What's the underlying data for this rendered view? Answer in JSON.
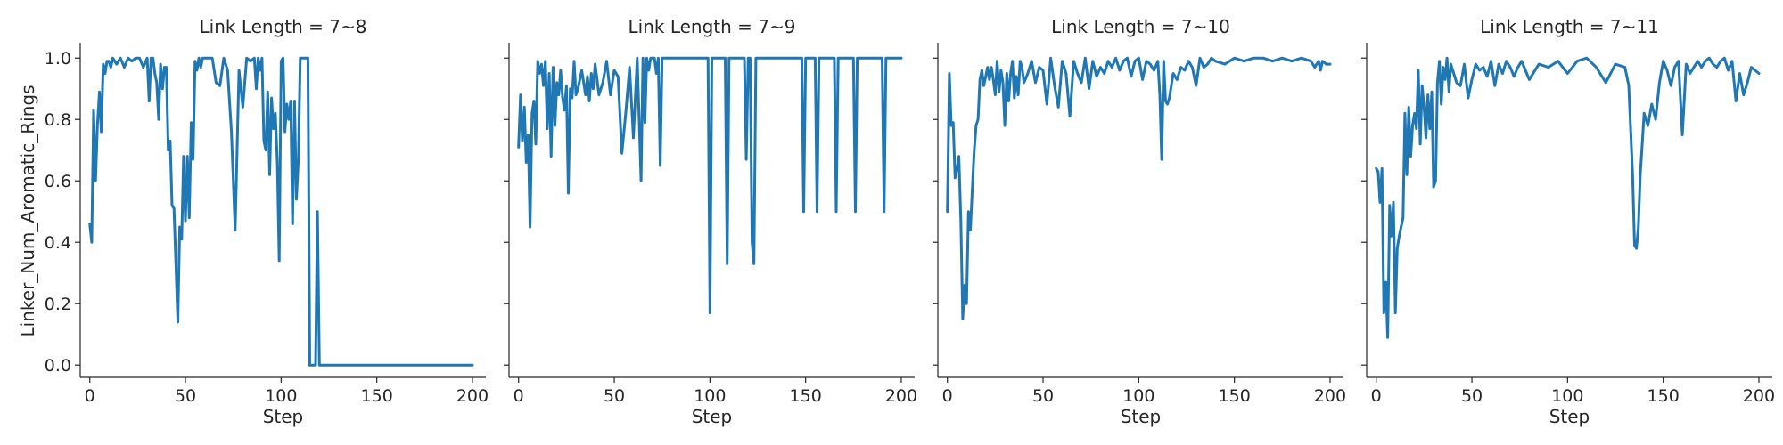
{
  "chart_data": {
    "type": "line",
    "ylabel": "Linker_Num_Aromatic_Rings",
    "xlabel": "Step",
    "xlim": [
      -5,
      207
    ],
    "ylim": [
      -0.04,
      1.05
    ],
    "xticks": [
      0,
      50,
      100,
      150,
      200
    ],
    "yticks": [
      0.0,
      0.2,
      0.4,
      0.6,
      0.8,
      1.0
    ],
    "ytick_labels": [
      "0.0",
      "0.2",
      "0.4",
      "0.6",
      "0.8",
      "1.0"
    ],
    "grid": false,
    "line_color": "#1f77b4",
    "panels": [
      {
        "title": "Link Length = 7~8",
        "x": [
          0,
          1,
          2,
          3,
          4,
          5,
          6,
          7,
          8,
          9,
          10,
          11,
          12,
          14,
          16,
          18,
          20,
          22,
          24,
          26,
          28,
          30,
          31,
          32,
          33,
          34,
          35,
          36,
          37,
          38,
          39,
          40,
          41,
          42,
          43,
          44,
          45,
          46,
          47,
          48,
          49,
          50,
          51,
          52,
          53,
          54,
          55,
          56,
          57,
          58,
          59,
          60,
          62,
          64,
          66,
          68,
          70,
          72,
          74,
          76,
          78,
          80,
          82,
          84,
          86,
          87,
          88,
          89,
          90,
          91,
          92,
          93,
          94,
          95,
          96,
          97,
          98,
          99,
          100,
          101,
          102,
          103,
          104,
          105,
          106,
          107,
          108,
          109,
          110,
          111,
          112,
          113,
          114,
          115,
          116,
          117,
          118,
          119,
          120,
          121,
          122,
          123,
          124,
          125,
          126,
          127,
          128,
          129,
          130,
          131,
          132,
          133,
          134,
          135,
          136,
          137,
          138,
          139,
          140,
          145,
          150,
          160,
          170,
          180,
          190,
          200
        ],
        "y": [
          0.46,
          0.4,
          0.83,
          0.6,
          0.78,
          0.89,
          0.76,
          0.98,
          0.95,
          0.99,
          0.99,
          0.97,
          1.0,
          0.98,
          1.0,
          0.97,
          1.0,
          0.99,
          1.0,
          1.0,
          0.97,
          1.0,
          0.86,
          1.0,
          1.0,
          0.95,
          0.92,
          0.8,
          0.98,
          0.9,
          0.97,
          0.97,
          0.7,
          0.73,
          0.52,
          0.51,
          0.33,
          0.14,
          0.45,
          0.41,
          0.68,
          0.47,
          0.68,
          0.48,
          0.79,
          0.67,
          0.99,
          0.96,
          1.0,
          0.97,
          1.0,
          1.0,
          1.0,
          1.0,
          0.92,
          0.91,
          1.0,
          0.96,
          0.76,
          0.44,
          0.96,
          0.84,
          1.0,
          0.99,
          1.0,
          0.9,
          1.0,
          0.96,
          1.0,
          0.73,
          0.7,
          0.89,
          0.62,
          0.87,
          0.77,
          0.82,
          0.66,
          0.34,
          0.99,
          1.0,
          0.76,
          0.85,
          0.8,
          0.86,
          0.46,
          0.86,
          0.54,
          0.67,
          1.0,
          1.0,
          1.0,
          1.0,
          1.0,
          0.0,
          0.0,
          0.0,
          0.0,
          0.5,
          0.0,
          0.0,
          0.0,
          0.0,
          0.0,
          0.0,
          0.0,
          0.0,
          0.0,
          0.0,
          0.0,
          0.0,
          0.0,
          0.0,
          0.0,
          0.0,
          0.0,
          0.0,
          0.0,
          0.0,
          0.0,
          0.0,
          0.0,
          0.0,
          0.0,
          0.0,
          0.0,
          0.0
        ]
      },
      {
        "title": "Link Length = 7~9",
        "x": [
          0,
          1,
          2,
          3,
          4,
          5,
          6,
          7,
          8,
          9,
          10,
          11,
          12,
          13,
          14,
          15,
          16,
          17,
          18,
          19,
          20,
          21,
          22,
          23,
          24,
          25,
          26,
          27,
          28,
          29,
          30,
          31,
          32,
          33,
          34,
          35,
          36,
          37,
          38,
          39,
          40,
          42,
          44,
          46,
          48,
          50,
          52,
          54,
          56,
          58,
          60,
          62,
          64,
          65,
          66,
          67,
          68,
          69,
          70,
          71,
          72,
          73,
          74,
          75,
          76,
          77,
          78,
          79,
          80,
          85,
          90,
          95,
          98,
          99,
          100,
          101,
          102,
          105,
          108,
          109,
          110,
          115,
          118,
          119,
          120,
          121,
          122,
          123,
          124,
          125,
          130,
          140,
          148,
          149,
          150,
          151,
          155,
          156,
          157,
          158,
          160,
          165,
          166,
          167,
          170,
          172,
          175,
          176,
          177,
          180,
          185,
          190,
          191,
          192,
          195,
          200
        ],
        "y": [
          0.71,
          0.88,
          0.73,
          0.84,
          0.66,
          0.75,
          0.45,
          0.82,
          0.86,
          0.72,
          0.99,
          0.95,
          0.98,
          0.91,
          0.99,
          0.77,
          0.95,
          0.68,
          0.97,
          0.78,
          0.92,
          0.88,
          0.96,
          0.87,
          0.83,
          0.91,
          0.56,
          0.9,
          0.87,
          0.99,
          0.88,
          0.9,
          0.93,
          0.96,
          0.92,
          0.88,
          0.94,
          0.86,
          0.95,
          0.9,
          0.98,
          0.88,
          0.92,
          0.99,
          0.88,
          0.96,
          0.94,
          0.69,
          0.82,
          0.97,
          0.74,
          1.0,
          0.6,
          1.0,
          0.79,
          1.0,
          0.96,
          1.0,
          1.0,
          1.0,
          0.95,
          1.0,
          0.65,
          1.0,
          1.0,
          1.0,
          1.0,
          1.0,
          1.0,
          1.0,
          1.0,
          1.0,
          1.0,
          1.0,
          0.17,
          1.0,
          1.0,
          1.0,
          1.0,
          0.33,
          1.0,
          1.0,
          1.0,
          0.67,
          1.0,
          1.0,
          0.4,
          0.33,
          1.0,
          1.0,
          1.0,
          1.0,
          1.0,
          0.5,
          1.0,
          1.0,
          1.0,
          0.5,
          1.0,
          1.0,
          1.0,
          1.0,
          0.5,
          1.0,
          1.0,
          1.0,
          1.0,
          0.5,
          1.0,
          1.0,
          1.0,
          1.0,
          0.5,
          1.0,
          1.0,
          1.0
        ]
      },
      {
        "title": "Link Length = 7~10",
        "x": [
          0,
          1,
          2,
          3,
          4,
          5,
          6,
          7,
          8,
          9,
          10,
          11,
          12,
          13,
          14,
          15,
          16,
          17,
          18,
          19,
          20,
          21,
          22,
          23,
          24,
          25,
          26,
          27,
          28,
          29,
          30,
          31,
          32,
          33,
          34,
          35,
          36,
          37,
          38,
          39,
          40,
          42,
          44,
          46,
          48,
          50,
          52,
          54,
          56,
          58,
          60,
          62,
          64,
          66,
          68,
          70,
          72,
          74,
          76,
          78,
          80,
          82,
          84,
          86,
          88,
          90,
          92,
          94,
          96,
          98,
          100,
          102,
          104,
          106,
          108,
          110,
          111,
          112,
          113,
          114,
          115,
          116,
          118,
          120,
          122,
          124,
          126,
          128,
          130,
          132,
          134,
          136,
          138,
          140,
          145,
          150,
          155,
          160,
          165,
          170,
          175,
          180,
          185,
          190,
          192,
          194,
          195,
          196,
          198,
          200
        ],
        "y": [
          0.5,
          0.95,
          0.78,
          0.79,
          0.61,
          0.64,
          0.68,
          0.47,
          0.15,
          0.26,
          0.2,
          0.5,
          0.44,
          0.57,
          0.7,
          0.78,
          0.8,
          0.93,
          0.96,
          0.91,
          0.94,
          0.97,
          0.93,
          0.97,
          0.93,
          0.88,
          0.99,
          0.89,
          0.96,
          0.92,
          0.78,
          0.95,
          0.86,
          0.95,
          0.99,
          0.87,
          0.94,
          0.88,
          0.99,
          0.97,
          0.92,
          0.95,
          0.99,
          0.92,
          0.97,
          0.96,
          0.85,
          1.0,
          0.91,
          0.84,
          0.99,
          0.95,
          0.81,
          0.99,
          0.95,
          0.92,
          1.0,
          0.9,
          0.99,
          0.94,
          0.97,
          0.95,
          0.99,
          0.97,
          1.0,
          0.96,
          0.99,
          1.0,
          0.94,
          0.99,
          1.0,
          0.93,
          0.99,
          0.98,
          0.96,
          0.99,
          0.88,
          0.67,
          0.99,
          0.86,
          0.85,
          0.87,
          0.95,
          0.93,
          0.97,
          0.96,
          0.99,
          0.97,
          0.91,
          1.0,
          0.97,
          0.98,
          1.0,
          0.99,
          0.98,
          1.0,
          0.99,
          1.0,
          1.0,
          0.99,
          1.0,
          0.99,
          1.0,
          0.99,
          0.97,
          0.99,
          0.96,
          0.99,
          0.98,
          0.98
        ]
      },
      {
        "title": "Link Length = 7~11",
        "x": [
          0,
          1,
          2,
          3,
          4,
          5,
          6,
          7,
          8,
          9,
          10,
          11,
          12,
          13,
          14,
          15,
          16,
          17,
          18,
          19,
          20,
          21,
          22,
          23,
          24,
          25,
          26,
          27,
          28,
          29,
          30,
          31,
          32,
          33,
          34,
          35,
          36,
          37,
          38,
          39,
          40,
          42,
          44,
          46,
          48,
          50,
          52,
          54,
          56,
          58,
          60,
          62,
          64,
          66,
          68,
          70,
          72,
          74,
          76,
          78,
          80,
          85,
          90,
          95,
          100,
          105,
          110,
          115,
          120,
          125,
          130,
          132,
          134,
          135,
          136,
          137,
          138,
          139,
          140,
          142,
          144,
          146,
          148,
          150,
          152,
          154,
          156,
          158,
          160,
          162,
          164,
          166,
          168,
          170,
          172,
          174,
          176,
          178,
          180,
          182,
          184,
          186,
          188,
          190,
          192,
          194,
          196,
          198,
          200
        ],
        "y": [
          0.64,
          0.63,
          0.53,
          0.64,
          0.17,
          0.27,
          0.09,
          0.52,
          0.42,
          0.53,
          0.17,
          0.38,
          0.42,
          0.45,
          0.48,
          0.82,
          0.62,
          0.84,
          0.68,
          0.78,
          0.82,
          0.77,
          0.96,
          0.72,
          0.91,
          0.84,
          0.74,
          0.88,
          0.77,
          0.89,
          0.58,
          0.6,
          0.92,
          0.99,
          0.85,
          0.97,
          0.93,
          1.0,
          0.89,
          0.98,
          0.96,
          0.92,
          0.91,
          0.98,
          0.87,
          0.93,
          0.98,
          0.96,
          0.97,
          0.94,
          0.99,
          0.91,
          0.98,
          0.95,
          0.99,
          0.97,
          0.94,
          0.97,
          0.99,
          0.96,
          0.93,
          0.98,
          0.97,
          0.99,
          0.95,
          0.99,
          1.0,
          0.97,
          0.92,
          0.98,
          0.97,
          0.91,
          0.62,
          0.39,
          0.38,
          0.45,
          0.62,
          0.72,
          0.82,
          0.78,
          0.85,
          0.8,
          0.92,
          0.99,
          0.96,
          0.91,
          0.97,
          0.99,
          0.75,
          0.98,
          0.95,
          0.97,
          0.99,
          0.97,
          0.99,
          1.0,
          0.98,
          0.97,
          0.99,
          1.0,
          0.96,
          0.99,
          0.86,
          0.95,
          0.88,
          0.92,
          0.97,
          0.96,
          0.95
        ]
      }
    ]
  }
}
